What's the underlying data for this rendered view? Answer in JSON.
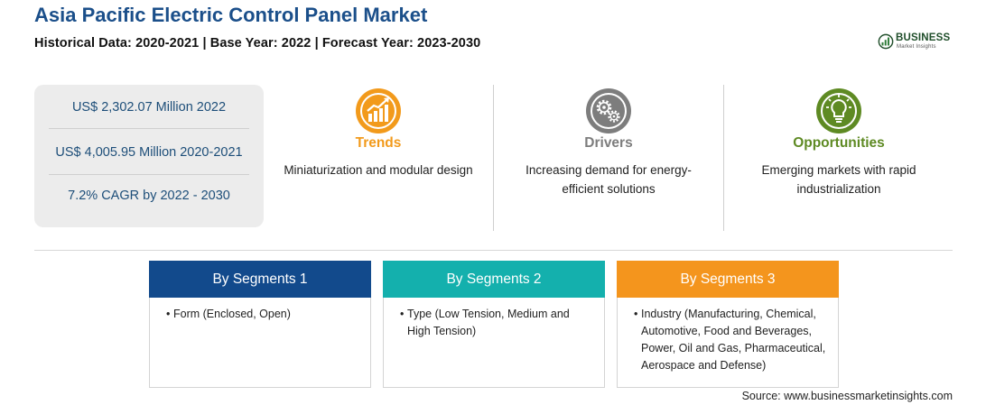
{
  "header": {
    "title": "Asia Pacific Electric Control Panel Market",
    "subtitle": "Historical Data: 2020-2021 | Base Year: 2022 | Forecast Year: 2023-2030"
  },
  "logo": {
    "brand": "BUSINESS",
    "tagline": "Market Insights",
    "color": "#1f4e2a"
  },
  "stats": [
    "US$ 2,302.07 Million 2022",
    "US$ 4,005.95 Million 2020-2021",
    "7.2% CAGR by 2022 - 2030"
  ],
  "columns": [
    {
      "heading": "Trends",
      "icon": "trend-chart-icon",
      "color": "#f29a1b",
      "desc_lines": [
        "Miniaturization and modular design"
      ]
    },
    {
      "heading": "Drivers",
      "icon": "gears-icon",
      "color": "#7d7d7d",
      "desc_lines": [
        "Increasing demand for energy-",
        "efficient solutions"
      ]
    },
    {
      "heading": "Opportunities",
      "icon": "lightbulb-icon",
      "color": "#5e8a23",
      "desc_lines": [
        "Emerging markets with rapid",
        "industrialization"
      ]
    }
  ],
  "segments": [
    {
      "title": "By Segments 1",
      "color": "#124a8c",
      "items": [
        "Form (Enclosed, Open)"
      ]
    },
    {
      "title": "By Segments 2",
      "color": "#14b0ad",
      "items": [
        "Type (Low Tension, Medium and High Tension)"
      ]
    },
    {
      "title": "By Segments 3",
      "color": "#f4951d",
      "items": [
        "Industry (Manufacturing, Chemical, Automotive, Food and Beverages, Power, Oil and Gas, Pharmaceutical, Aerospace and Defense)"
      ]
    }
  ],
  "source": "Source: www.businessmarketinsights.com"
}
